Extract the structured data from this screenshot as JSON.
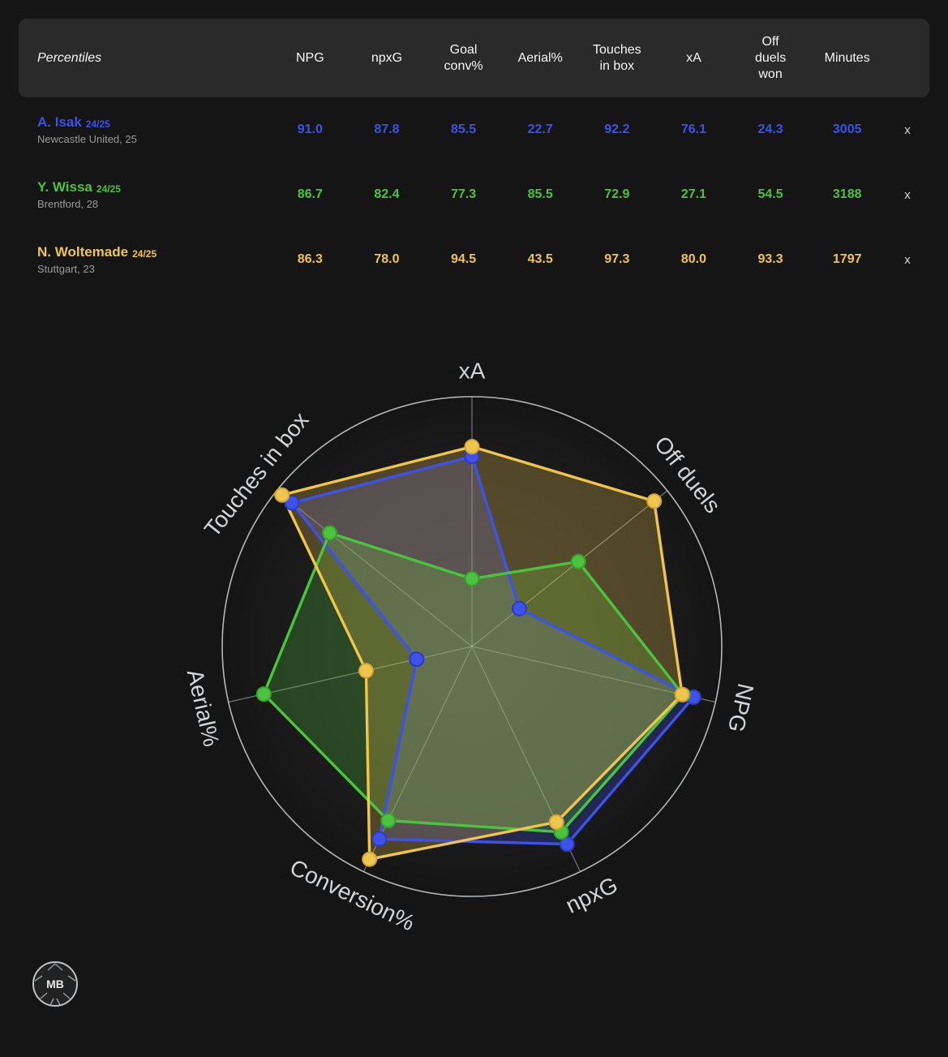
{
  "page": {
    "background": "#151515",
    "accent_header_bg": "#2a2a2b"
  },
  "table": {
    "title": "Percentiles",
    "columns": [
      "NPG",
      "npxG",
      "Goal conv%",
      "Aerial%",
      "Touches in box",
      "xA",
      "Off duels won",
      "Minutes"
    ],
    "remove_label": "x",
    "rows": [
      {
        "name": "A. Isak",
        "season": "24/25",
        "meta": "Newcastle United, 25",
        "color": "#3f51eb",
        "values": [
          "91.0",
          "87.8",
          "85.5",
          "22.7",
          "92.2",
          "76.1",
          "24.3",
          "3005"
        ]
      },
      {
        "name": "Y. Wissa",
        "season": "24/25",
        "meta": "Brentford, 28",
        "color": "#4cc33e",
        "values": [
          "86.7",
          "82.4",
          "77.3",
          "85.5",
          "72.9",
          "27.1",
          "54.5",
          "3188"
        ]
      },
      {
        "name": "N. Woltemade",
        "season": "24/25",
        "meta": "Stuttgart, 23",
        "color": "#f0c54d",
        "values": [
          "86.3",
          "78.0",
          "94.5",
          "43.5",
          "97.3",
          "80.0",
          "93.3",
          "1797"
        ]
      }
    ]
  },
  "chart_data": {
    "type": "radar",
    "axes": [
      "xA",
      "Off duels",
      "NPG",
      "npxG",
      "Conversion%",
      "Aerial%",
      "Touches in box"
    ],
    "label_rotations": [
      0,
      51.4,
      102.9,
      -25.7,
      25.7,
      77.1,
      -51.4
    ],
    "axis_min": 0,
    "max": 100,
    "grid": "single-outer-circle-with-spokes",
    "legend_position": "none",
    "series": [
      {
        "name": "A. Isak 24/25",
        "color": "#3f51eb",
        "dot_ring": "#2c3bbd",
        "values": [
          76.1,
          24.3,
          91.0,
          87.8,
          85.5,
          22.7,
          92.2
        ]
      },
      {
        "name": "Y. Wissa 24/25",
        "color": "#4cc33e",
        "dot_ring": "#37a02c",
        "values": [
          27.1,
          54.5,
          86.7,
          82.4,
          77.3,
          85.5,
          72.9
        ]
      },
      {
        "name": "N. Woltemade 24/25",
        "color": "#f0c54d",
        "dot_ring": "#d4a637",
        "values": [
          80.0,
          93.3,
          86.3,
          78.0,
          94.5,
          43.5,
          97.3
        ]
      }
    ],
    "grid_color": "#cfd3d6",
    "label_color": "#d2d5d7"
  },
  "logo": {
    "text": "MB"
  }
}
